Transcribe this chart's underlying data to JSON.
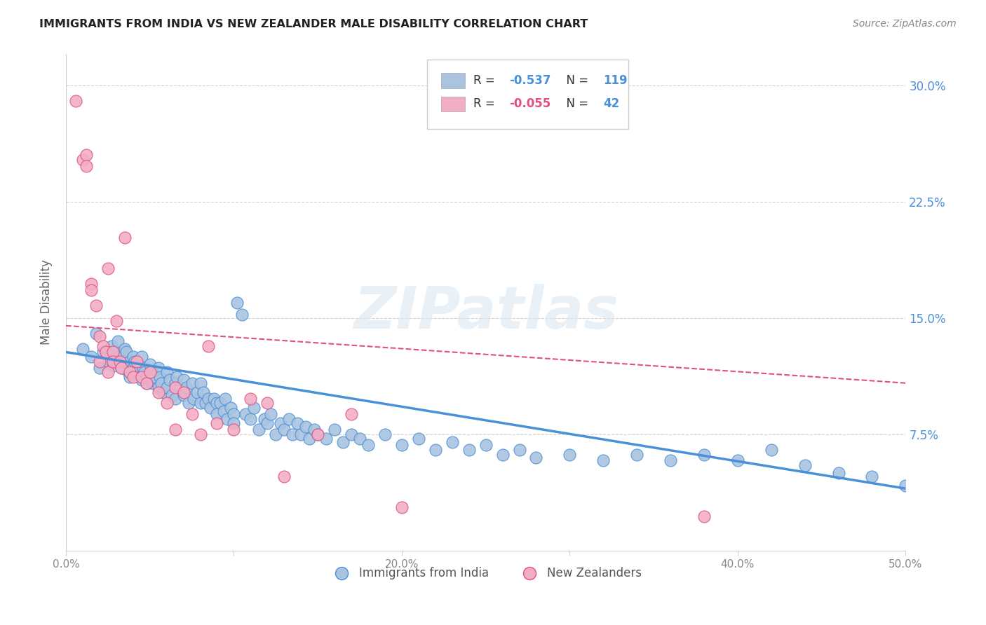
{
  "title": "IMMIGRANTS FROM INDIA VS NEW ZEALANDER MALE DISABILITY CORRELATION CHART",
  "source": "Source: ZipAtlas.com",
  "ylabel": "Male Disability",
  "xlim": [
    0.0,
    0.5
  ],
  "ylim": [
    0.0,
    0.32
  ],
  "yticks": [
    0.075,
    0.15,
    0.225,
    0.3
  ],
  "ytick_labels": [
    "7.5%",
    "15.0%",
    "22.5%",
    "30.0%"
  ],
  "xticks": [
    0.0,
    0.1,
    0.2,
    0.3,
    0.4,
    0.5
  ],
  "xtick_labels": [
    "0.0%",
    "",
    "20.0%",
    "",
    "40.0%",
    "50.0%"
  ],
  "legend_entries": [
    {
      "label": "Immigrants from India",
      "R": "-0.537",
      "N": "119",
      "color": "#aac4e0"
    },
    {
      "label": "New Zealanders",
      "R": "-0.055",
      "N": "42",
      "color": "#f2aec5"
    }
  ],
  "blue_color": "#4a90d9",
  "pink_color": "#e05080",
  "blue_fill": "#aac4e0",
  "pink_fill": "#f2aec5",
  "grid_color": "#d0d0d0",
  "watermark": "ZIPatlas",
  "blue_scatter_x": [
    0.01,
    0.015,
    0.018,
    0.02,
    0.022,
    0.025,
    0.027,
    0.028,
    0.03,
    0.03,
    0.031,
    0.032,
    0.033,
    0.035,
    0.035,
    0.036,
    0.037,
    0.038,
    0.038,
    0.04,
    0.04,
    0.041,
    0.042,
    0.043,
    0.044,
    0.045,
    0.045,
    0.046,
    0.047,
    0.048,
    0.048,
    0.05,
    0.05,
    0.051,
    0.052,
    0.053,
    0.055,
    0.055,
    0.056,
    0.057,
    0.058,
    0.06,
    0.06,
    0.062,
    0.063,
    0.065,
    0.065,
    0.066,
    0.068,
    0.07,
    0.07,
    0.072,
    0.073,
    0.075,
    0.076,
    0.078,
    0.08,
    0.08,
    0.082,
    0.083,
    0.085,
    0.086,
    0.088,
    0.09,
    0.09,
    0.092,
    0.094,
    0.095,
    0.096,
    0.098,
    0.1,
    0.1,
    0.102,
    0.105,
    0.107,
    0.11,
    0.112,
    0.115,
    0.118,
    0.12,
    0.122,
    0.125,
    0.128,
    0.13,
    0.133,
    0.135,
    0.138,
    0.14,
    0.143,
    0.145,
    0.148,
    0.15,
    0.155,
    0.16,
    0.165,
    0.17,
    0.175,
    0.18,
    0.19,
    0.2,
    0.21,
    0.22,
    0.23,
    0.24,
    0.25,
    0.26,
    0.27,
    0.28,
    0.3,
    0.32,
    0.34,
    0.36,
    0.38,
    0.4,
    0.42,
    0.44,
    0.46,
    0.48,
    0.5
  ],
  "blue_scatter_y": [
    0.13,
    0.125,
    0.14,
    0.118,
    0.128,
    0.122,
    0.132,
    0.119,
    0.128,
    0.122,
    0.135,
    0.125,
    0.118,
    0.13,
    0.122,
    0.128,
    0.115,
    0.122,
    0.112,
    0.125,
    0.118,
    0.122,
    0.115,
    0.118,
    0.112,
    0.125,
    0.11,
    0.118,
    0.115,
    0.112,
    0.108,
    0.12,
    0.11,
    0.115,
    0.108,
    0.112,
    0.118,
    0.105,
    0.112,
    0.108,
    0.102,
    0.115,
    0.105,
    0.11,
    0.1,
    0.108,
    0.098,
    0.112,
    0.105,
    0.11,
    0.1,
    0.105,
    0.095,
    0.108,
    0.098,
    0.102,
    0.108,
    0.095,
    0.102,
    0.095,
    0.098,
    0.092,
    0.098,
    0.095,
    0.088,
    0.095,
    0.09,
    0.098,
    0.085,
    0.092,
    0.088,
    0.082,
    0.16,
    0.152,
    0.088,
    0.085,
    0.092,
    0.078,
    0.085,
    0.082,
    0.088,
    0.075,
    0.082,
    0.078,
    0.085,
    0.075,
    0.082,
    0.075,
    0.08,
    0.072,
    0.078,
    0.075,
    0.072,
    0.078,
    0.07,
    0.075,
    0.072,
    0.068,
    0.075,
    0.068,
    0.072,
    0.065,
    0.07,
    0.065,
    0.068,
    0.062,
    0.065,
    0.06,
    0.062,
    0.058,
    0.062,
    0.058,
    0.062,
    0.058,
    0.065,
    0.055,
    0.05,
    0.048,
    0.042
  ],
  "pink_scatter_x": [
    0.006,
    0.01,
    0.012,
    0.012,
    0.015,
    0.015,
    0.018,
    0.02,
    0.02,
    0.022,
    0.024,
    0.025,
    0.025,
    0.028,
    0.028,
    0.03,
    0.032,
    0.033,
    0.035,
    0.038,
    0.04,
    0.042,
    0.045,
    0.048,
    0.05,
    0.055,
    0.06,
    0.065,
    0.065,
    0.07,
    0.075,
    0.08,
    0.085,
    0.09,
    0.1,
    0.11,
    0.12,
    0.13,
    0.15,
    0.17,
    0.2,
    0.38
  ],
  "pink_scatter_y": [
    0.29,
    0.252,
    0.255,
    0.248,
    0.172,
    0.168,
    0.158,
    0.138,
    0.122,
    0.132,
    0.128,
    0.115,
    0.182,
    0.128,
    0.122,
    0.148,
    0.122,
    0.118,
    0.202,
    0.115,
    0.112,
    0.122,
    0.112,
    0.108,
    0.115,
    0.102,
    0.095,
    0.105,
    0.078,
    0.102,
    0.088,
    0.075,
    0.132,
    0.082,
    0.078,
    0.098,
    0.095,
    0.048,
    0.075,
    0.088,
    0.028,
    0.022
  ],
  "blue_line_x": [
    0.0,
    0.5
  ],
  "blue_line_y_start": 0.128,
  "blue_line_y_end": 0.04,
  "pink_line_x": [
    0.0,
    0.5
  ],
  "pink_line_y_start": 0.145,
  "pink_line_y_end": 0.108
}
